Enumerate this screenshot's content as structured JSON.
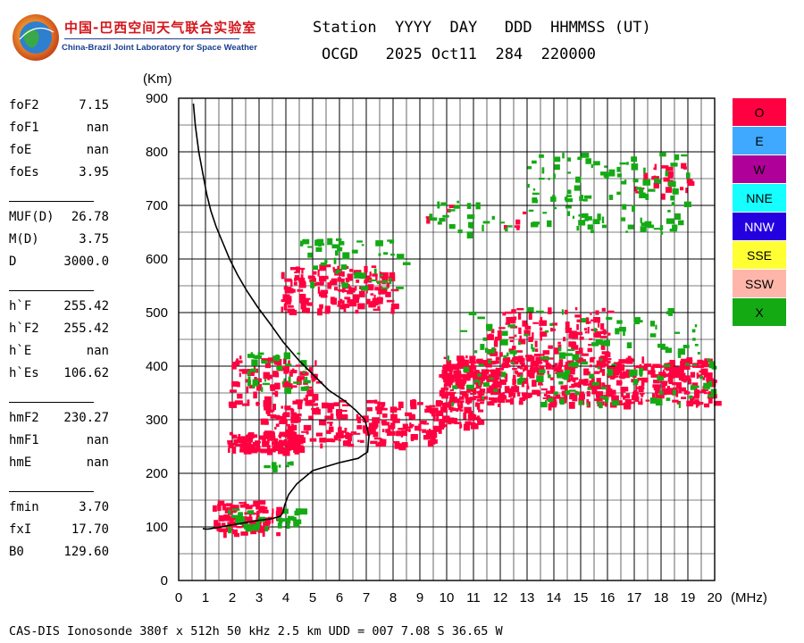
{
  "logo": {
    "cn": "中国-巴西空间天气联合实验室",
    "en": "China-Brazil Joint Laboratory for Space Weather"
  },
  "header": {
    "line1": "Station  YYYY  DAY   DDD  HHMMSS (UT)",
    "line2": "OCGD   2025 Oct11  284  220000"
  },
  "params": [
    {
      "name": "foF2",
      "value": "7.15"
    },
    {
      "name": "foF1",
      "value": "nan"
    },
    {
      "name": "foE",
      "value": "nan"
    },
    {
      "name": "foEs",
      "value": "3.95"
    },
    {
      "name": "MUF(D)",
      "value": "26.78"
    },
    {
      "name": "M(D)",
      "value": "3.75"
    },
    {
      "name": "D",
      "value": "3000.0"
    },
    {
      "name": "h`F",
      "value": "255.42"
    },
    {
      "name": "h`F2",
      "value": "255.42"
    },
    {
      "name": "h`E",
      "value": "nan"
    },
    {
      "name": "h`Es",
      "value": "106.62"
    },
    {
      "name": "hmF2",
      "value": "230.27"
    },
    {
      "name": "hmF1",
      "value": "nan"
    },
    {
      "name": "hmE",
      "value": "nan"
    },
    {
      "name": "fmin",
      "value": "3.70"
    },
    {
      "name": "fxI",
      "value": "17.70"
    },
    {
      "name": "B0",
      "value": "129.60"
    }
  ],
  "legend": [
    {
      "label": "O",
      "color": "#ff0040"
    },
    {
      "label": "E",
      "color": "#3fa9ff"
    },
    {
      "label": "W",
      "color": "#b0009a"
    },
    {
      "label": "NNE",
      "color": "#15ffff"
    },
    {
      "label": "NNW",
      "color": "#2400e0"
    },
    {
      "label": "SSE",
      "color": "#ffff33"
    },
    {
      "label": "SSW",
      "color": "#ffb6aa"
    },
    {
      "label": "X",
      "color": "#14aa14"
    }
  ],
  "footer": "CAS-DIS Ionosonde 380f x 512h 50 kHz 2.5 km UDD = 007 7.08 S 36.65 W",
  "chart_data": {
    "type": "scatter",
    "xlabel": "(MHz)",
    "ylabel": "(Km)",
    "xlim": [
      0,
      20
    ],
    "ylim": [
      0,
      900
    ],
    "xticks": [
      0,
      1,
      2,
      3,
      4,
      5,
      6,
      7,
      8,
      9,
      10,
      11,
      12,
      13,
      14,
      15,
      16,
      17,
      18,
      19,
      20
    ],
    "yticks": [
      0,
      100,
      200,
      300,
      400,
      500,
      600,
      700,
      800,
      900
    ],
    "grid": true,
    "legend_position": "right",
    "series": [
      {
        "name": "O",
        "color": "#ff0040",
        "marker": "rect",
        "clusters": [
          {
            "x": [
              1.2,
              3.7
            ],
            "y": [
              88,
              150
            ],
            "n": 90
          },
          {
            "x": [
              1.8,
              4.6
            ],
            "y": [
              245,
              280
            ],
            "n": 110
          },
          {
            "x": [
              3.0,
              9.8
            ],
            "y": [
              255,
              340
            ],
            "n": 230
          },
          {
            "x": [
              9.7,
              11.2
            ],
            "y": [
              290,
              420
            ],
            "n": 160
          },
          {
            "x": [
              11.0,
              20.0
            ],
            "y": [
              330,
              420
            ],
            "n": 420
          },
          {
            "x": [
              11.5,
              16.0
            ],
            "y": [
              410,
              510
            ],
            "n": 120
          },
          {
            "x": [
              1.8,
              5.2
            ],
            "y": [
              330,
              420
            ],
            "n": 90
          },
          {
            "x": [
              3.8,
              8.0
            ],
            "y": [
              505,
              590
            ],
            "n": 170
          },
          {
            "x": [
              17.0,
              19.1
            ],
            "y": [
              720,
              780
            ],
            "n": 25
          },
          {
            "x": [
              9.2,
              13.3
            ],
            "y": [
              660,
              705
            ],
            "n": 10
          }
        ]
      },
      {
        "name": "X",
        "color": "#14aa14",
        "marker": "rect",
        "clusters": [
          {
            "x": [
              1.5,
              4.6
            ],
            "y": [
              100,
              135
            ],
            "n": 35
          },
          {
            "x": [
              2.8,
              4.2
            ],
            "y": [
              210,
              225
            ],
            "n": 8
          },
          {
            "x": [
              2.5,
              4.8
            ],
            "y": [
              360,
              430
            ],
            "n": 35
          },
          {
            "x": [
              4.5,
              8.4
            ],
            "y": [
              545,
              640
            ],
            "n": 50
          },
          {
            "x": [
              9.3,
              12.3
            ],
            "y": [
              650,
              710
            ],
            "n": 25
          },
          {
            "x": [
              13.0,
              19.0
            ],
            "y": [
              650,
              800
            ],
            "n": 110
          },
          {
            "x": [
              10.0,
              20.0
            ],
            "y": [
              330,
              510
            ],
            "n": 150
          }
        ]
      },
      {
        "name": "trace",
        "color": "#000000",
        "type": "line",
        "x": [
          0.55,
          0.62,
          0.75,
          0.9,
          1.05,
          1.2,
          1.4,
          1.65,
          1.9,
          2.2,
          2.55,
          2.95,
          3.4,
          3.9,
          4.5,
          5.1,
          5.6,
          6.2,
          6.6,
          6.95,
          7.1,
          7.05,
          6.7,
          6.0,
          5.0,
          4.4,
          4.1,
          3.95,
          3.9,
          3.8,
          3.45,
          2.95,
          2.5,
          2.0,
          1.6,
          1.35,
          1.1,
          1.0,
          0.9
        ],
        "y": [
          890,
          850,
          800,
          760,
          720,
          690,
          660,
          630,
          600,
          570,
          540,
          510,
          480,
          445,
          410,
          380,
          355,
          335,
          318,
          300,
          270,
          240,
          228,
          220,
          205,
          180,
          160,
          140,
          128,
          120,
          115,
          112,
          108,
          104,
          100,
          98,
          96,
          96,
          97
        ]
      }
    ]
  }
}
